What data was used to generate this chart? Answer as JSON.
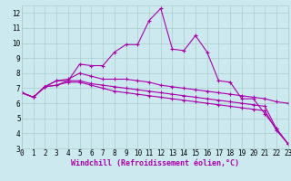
{
  "xlabel": "Windchill (Refroidissement éolien,°C)",
  "bg_color": "#cce9f0",
  "line_color": "#aa00aa",
  "grid_color": "#aacccc",
  "x_ticks": [
    0,
    1,
    2,
    3,
    4,
    5,
    6,
    7,
    8,
    9,
    10,
    11,
    12,
    13,
    14,
    15,
    16,
    17,
    18,
    19,
    20,
    21,
    22,
    23
  ],
  "y_ticks": [
    3,
    4,
    5,
    6,
    7,
    8,
    9,
    10,
    11,
    12
  ],
  "xlim": [
    0,
    23
  ],
  "ylim": [
    3,
    12.5
  ],
  "series": [
    [
      6.7,
      6.4,
      7.1,
      7.2,
      7.5,
      8.6,
      8.5,
      8.5,
      9.4,
      9.9,
      9.9,
      11.5,
      12.3,
      9.6,
      9.5,
      10.5,
      9.4,
      7.5,
      7.4,
      6.3,
      6.3,
      5.3,
      4.3,
      3.3
    ],
    [
      6.7,
      6.4,
      7.1,
      7.5,
      7.6,
      8.0,
      7.8,
      7.6,
      7.6,
      7.6,
      7.5,
      7.4,
      7.2,
      7.1,
      7.0,
      6.9,
      6.8,
      6.7,
      6.6,
      6.5,
      6.4,
      6.3,
      6.1,
      6.0
    ],
    [
      6.7,
      6.4,
      7.1,
      7.5,
      7.5,
      7.5,
      7.3,
      7.2,
      7.1,
      7.0,
      6.9,
      6.8,
      6.7,
      6.6,
      6.5,
      6.4,
      6.3,
      6.2,
      6.1,
      6.0,
      5.9,
      5.8,
      4.3,
      3.3
    ],
    [
      6.7,
      6.4,
      7.1,
      7.2,
      7.4,
      7.4,
      7.2,
      7.0,
      6.8,
      6.7,
      6.6,
      6.5,
      6.4,
      6.3,
      6.2,
      6.1,
      6.0,
      5.9,
      5.8,
      5.7,
      5.6,
      5.5,
      4.2,
      3.3
    ]
  ],
  "font_size_ticks": 5.5,
  "font_size_xlabel": 6.0
}
